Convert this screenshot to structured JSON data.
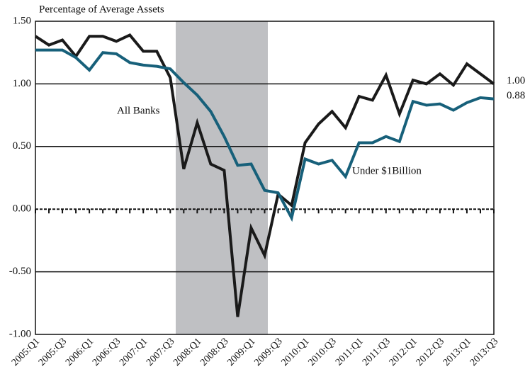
{
  "chart_data": {
    "type": "line",
    "title": "Percentage of Average Assets",
    "categories": [
      "2005:Q1",
      null,
      "2005:Q3",
      null,
      "2006:Q1",
      null,
      "2006:Q3",
      null,
      "2007:Q1",
      null,
      "2007:Q3",
      null,
      "2008:Q1",
      null,
      "2008:Q3",
      null,
      "2009:Q1",
      null,
      "2009:Q3",
      null,
      "2010:Q1",
      null,
      "2010:Q3",
      null,
      "2011:Q1",
      null,
      "2011:Q3",
      null,
      "2012:Q1",
      null,
      "2012:Q3",
      null,
      "2013:Q1",
      null,
      "2013:Q3"
    ],
    "series": [
      {
        "name": "All Banks",
        "color": "#1a1a1a",
        "values": [
          1.38,
          1.31,
          1.35,
          1.22,
          1.38,
          1.38,
          1.34,
          1.39,
          1.26,
          1.26,
          1.05,
          0.32,
          0.69,
          0.36,
          0.31,
          -0.86,
          -0.15,
          -0.37,
          0.12,
          0.03,
          0.53,
          0.68,
          0.78,
          0.65,
          0.9,
          0.87,
          1.07,
          0.76,
          1.03,
          1.0,
          1.08,
          0.99,
          1.16,
          1.08,
          1.0
        ],
        "value_labels": [
          null,
          null,
          null,
          null,
          null,
          null,
          null,
          null,
          null,
          null,
          null,
          null,
          null,
          null,
          null,
          null,
          null,
          null,
          null,
          null,
          null,
          null,
          null,
          null,
          null,
          null,
          null,
          null,
          null,
          null,
          null,
          null,
          null,
          null,
          "1.00"
        ]
      },
      {
        "name": "Under $1Billion",
        "color": "#17607a",
        "values": [
          1.27,
          1.27,
          1.27,
          1.21,
          1.11,
          1.25,
          1.24,
          1.17,
          1.15,
          1.14,
          1.12,
          1.01,
          0.91,
          0.78,
          0.58,
          0.35,
          0.36,
          0.15,
          0.13,
          -0.07,
          0.4,
          0.36,
          0.39,
          0.26,
          0.53,
          0.53,
          0.58,
          0.54,
          0.86,
          0.83,
          0.84,
          0.79,
          0.85,
          0.89,
          0.88
        ],
        "value_labels": [
          null,
          null,
          null,
          null,
          null,
          null,
          null,
          null,
          null,
          null,
          null,
          null,
          null,
          null,
          null,
          null,
          null,
          null,
          null,
          null,
          null,
          null,
          null,
          null,
          null,
          null,
          null,
          null,
          null,
          null,
          null,
          null,
          null,
          null,
          "0.88"
        ]
      }
    ],
    "ylim": [
      -1.0,
      1.5
    ],
    "yticks": [
      {
        "value": 1.5,
        "label": "1.50"
      },
      {
        "value": 1.0,
        "label": "1.00"
      },
      {
        "value": 0.5,
        "label": "0.50"
      },
      {
        "value": 0.0,
        "label": "0.00"
      },
      {
        "value": -0.5,
        "label": "-0.50"
      },
      {
        "value": -1.0,
        "label": "-1.00"
      }
    ],
    "grid": true
  }
}
